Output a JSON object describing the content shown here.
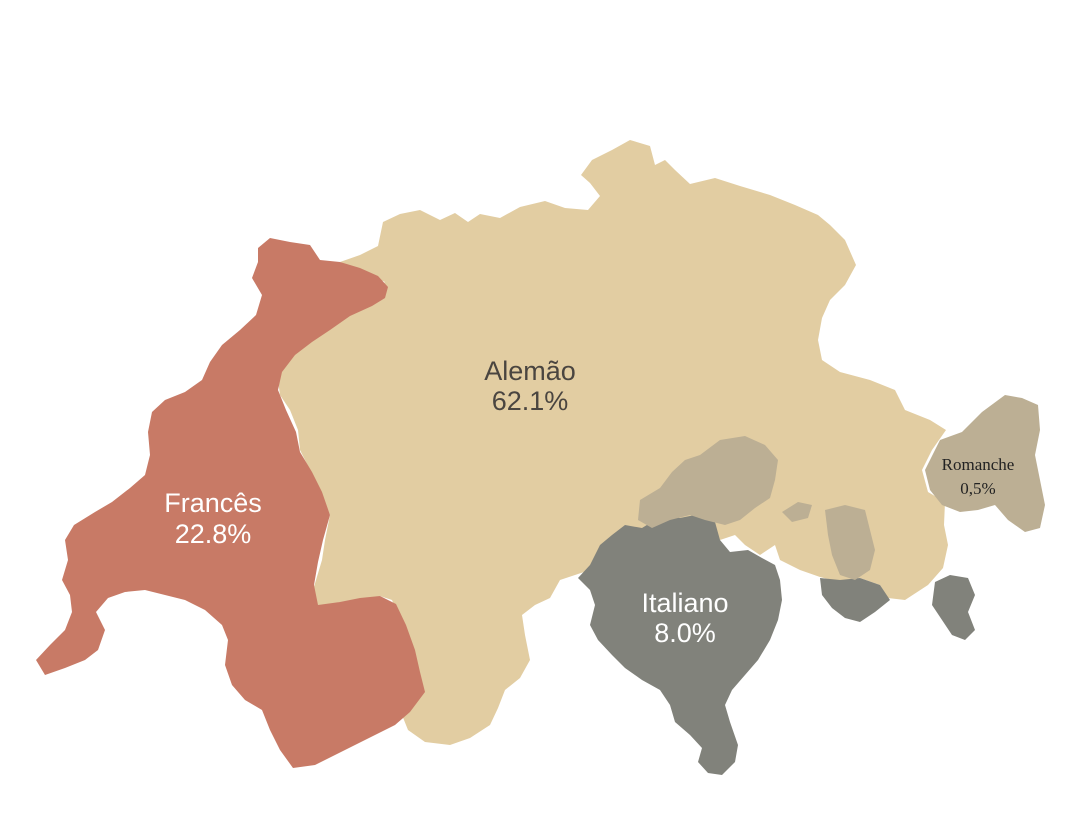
{
  "regions": {
    "german": {
      "name": "Alemão",
      "value": "62.1%",
      "color": "#e2cda2",
      "text_color": "#4a4540"
    },
    "french": {
      "name": "Francês",
      "value": "22.8%",
      "color": "#c87a66",
      "text_color": "#ffffff"
    },
    "italian": {
      "name": "Italiano",
      "value": "8.0%",
      "color": "#81827b",
      "text_color": "#ffffff"
    },
    "romansh": {
      "name": "Romanche",
      "value": "0,5%",
      "color": "#bcaf94",
      "text_color": "#222222"
    }
  }
}
